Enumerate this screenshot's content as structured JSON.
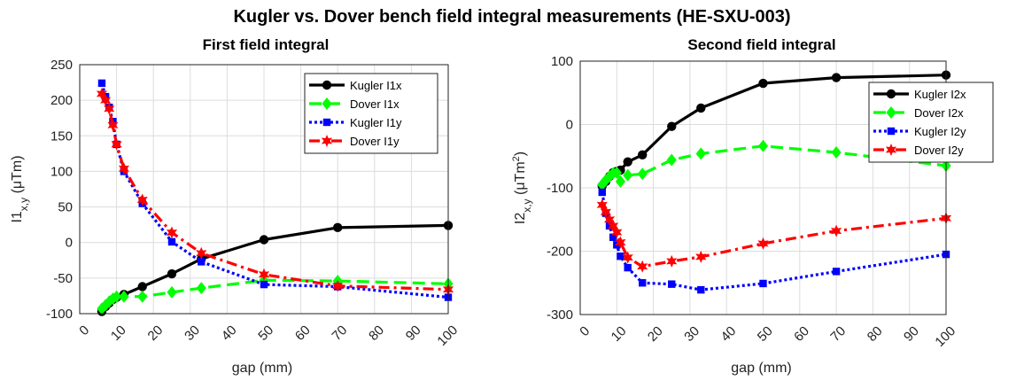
{
  "suptitle": "Kugler vs. Dover bench field integral measurements (HE-SXU-003)",
  "chart_data": [
    {
      "type": "line",
      "title": "First field integral",
      "xlabel": "gap (mm)",
      "ylabel": {
        "base": "I1",
        "sub": "x,y",
        "rest": "  (μTm)"
      },
      "xlim": [
        0,
        100
      ],
      "ylim": [
        -100,
        250
      ],
      "xticks": [
        "0",
        "10",
        "20",
        "30",
        "40",
        "50",
        "60",
        "70",
        "80",
        "90",
        "100"
      ],
      "yticks": [
        "-100",
        "-50",
        "0",
        "50",
        "100",
        "150",
        "200",
        "250"
      ],
      "grid": true,
      "legend_position": "top-right",
      "series": [
        {
          "name": "Kugler I1x",
          "color": "#000000",
          "dash": "",
          "marker": "circle",
          "x": [
            6,
            7,
            8,
            9,
            10,
            12,
            17,
            25,
            33,
            50,
            70,
            100
          ],
          "y": [
            -97,
            -90,
            -85,
            -80,
            -77,
            -73,
            -62,
            -44,
            -23,
            4,
            21,
            24
          ]
        },
        {
          "name": "Dover I1x",
          "color": "#00ff00",
          "dash": "14,7",
          "marker": "diamond",
          "x": [
            6,
            7,
            8,
            9,
            10,
            12,
            17,
            25,
            33,
            50,
            70,
            100
          ],
          "y": [
            -93,
            -88,
            -83,
            -79,
            -76,
            -76,
            -76,
            -70,
            -64,
            -53,
            -54,
            -58
          ]
        },
        {
          "name": "Kugler I1y",
          "color": "#0000ff",
          "dash": "3,3",
          "marker": "square",
          "x": [
            6,
            7,
            8,
            9,
            10,
            12,
            17,
            25,
            33,
            50,
            70,
            100
          ],
          "y": [
            224,
            205,
            190,
            170,
            138,
            100,
            55,
            1,
            -27,
            -59,
            -62,
            -77
          ]
        },
        {
          "name": "Dover I1y",
          "color": "#ff0000",
          "dash": "12,5,3,5",
          "marker": "hexagram",
          "x": [
            6,
            7,
            8,
            9,
            10,
            12,
            17,
            25,
            33,
            50,
            70,
            100
          ],
          "y": [
            209,
            200,
            188,
            165,
            138,
            104,
            60,
            14,
            -15,
            -45,
            -61,
            -66
          ]
        }
      ]
    },
    {
      "type": "line",
      "title": "Second field integral",
      "xlabel": "gap (mm)",
      "ylabel": {
        "base": "I2",
        "sub": "x,y",
        "rest": "  (μTm",
        "sup": "2",
        "tail": ")"
      },
      "xlim": [
        0,
        100
      ],
      "ylim": [
        -300,
        100
      ],
      "xticks": [
        "0",
        "10",
        "20",
        "30",
        "40",
        "50",
        "60",
        "70",
        "80",
        "90",
        "100"
      ],
      "yticks": [
        "-300",
        "-200",
        "-100",
        "0",
        "100"
      ],
      "grid": true,
      "legend_position": "top-right",
      "series": [
        {
          "name": "Kugler I2x",
          "color": "#000000",
          "dash": "",
          "marker": "circle",
          "x": [
            6,
            7,
            8,
            9,
            10,
            11,
            13,
            17,
            25,
            33,
            50,
            70,
            100
          ],
          "y": [
            -97,
            -90,
            -82,
            -76,
            -74,
            -72,
            -59,
            -48,
            -3,
            26,
            65,
            74,
            78
          ]
        },
        {
          "name": "Dover I2x",
          "color": "#00ff00",
          "dash": "14,7",
          "marker": "diamond",
          "x": [
            6,
            7,
            8,
            9,
            10,
            11,
            13,
            17,
            25,
            33,
            50,
            70,
            100
          ],
          "y": [
            -95,
            -88,
            -82,
            -77,
            -76,
            -90,
            -80,
            -78,
            -56,
            -46,
            -34,
            -44,
            -65
          ]
        },
        {
          "name": "Kugler I2y",
          "color": "#0000ff",
          "dash": "3,3",
          "marker": "square",
          "x": [
            6,
            7,
            8,
            9,
            10,
            11,
            13,
            17,
            25,
            33,
            50,
            70,
            100
          ],
          "y": [
            -107,
            -140,
            -160,
            -178,
            -190,
            -208,
            -226,
            -250,
            -252,
            -261,
            -251,
            -232,
            -205
          ]
        },
        {
          "name": "Dover I2y",
          "color": "#ff0000",
          "dash": "12,5,3,5",
          "marker": "hexagram",
          "x": [
            6,
            7,
            8,
            9,
            10,
            11,
            13,
            17,
            25,
            33,
            50,
            70,
            100
          ],
          "y": [
            -127,
            -138,
            -150,
            -160,
            -170,
            -186,
            -210,
            -224,
            -216,
            -209,
            -188,
            -168,
            -148
          ]
        }
      ]
    }
  ]
}
